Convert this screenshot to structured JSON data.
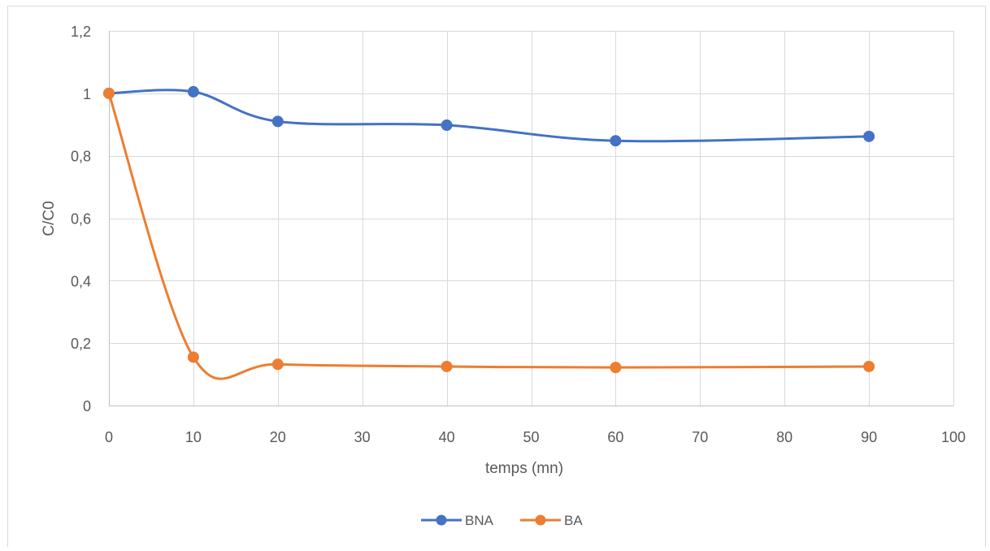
{
  "chart_data": {
    "type": "line",
    "xlabel": "temps (mn)",
    "ylabel": "C/C0",
    "xlim": [
      0,
      100
    ],
    "ylim": [
      0,
      1.2
    ],
    "x_ticks": [
      {
        "value": 0,
        "label": "0"
      },
      {
        "value": 10,
        "label": "10"
      },
      {
        "value": 20,
        "label": "20"
      },
      {
        "value": 30,
        "label": "30"
      },
      {
        "value": 40,
        "label": "40"
      },
      {
        "value": 50,
        "label": "50"
      },
      {
        "value": 60,
        "label": "60"
      },
      {
        "value": 70,
        "label": "70"
      },
      {
        "value": 80,
        "label": "80"
      },
      {
        "value": 90,
        "label": "90"
      },
      {
        "value": 100,
        "label": "100"
      }
    ],
    "y_ticks": [
      {
        "value": 0,
        "label": "0"
      },
      {
        "value": 0.2,
        "label": "0,2"
      },
      {
        "value": 0.4,
        "label": "0,4"
      },
      {
        "value": 0.6,
        "label": "0,6"
      },
      {
        "value": 0.8,
        "label": "0,8"
      },
      {
        "value": 1.0,
        "label": "1"
      },
      {
        "value": 1.2,
        "label": "1,2"
      }
    ],
    "grid": true,
    "smooth": true,
    "legend_position": "bottom",
    "series": [
      {
        "name": "BNA",
        "color": "#4472C4",
        "x": [
          0,
          10,
          20,
          40,
          60,
          90
        ],
        "y": [
          1.0,
          1.005,
          0.91,
          0.898,
          0.848,
          0.862
        ]
      },
      {
        "name": "BA",
        "color": "#ED7D31",
        "x": [
          0,
          10,
          20,
          40,
          60,
          90
        ],
        "y": [
          1.0,
          0.155,
          0.132,
          0.125,
          0.122,
          0.125
        ]
      }
    ]
  }
}
